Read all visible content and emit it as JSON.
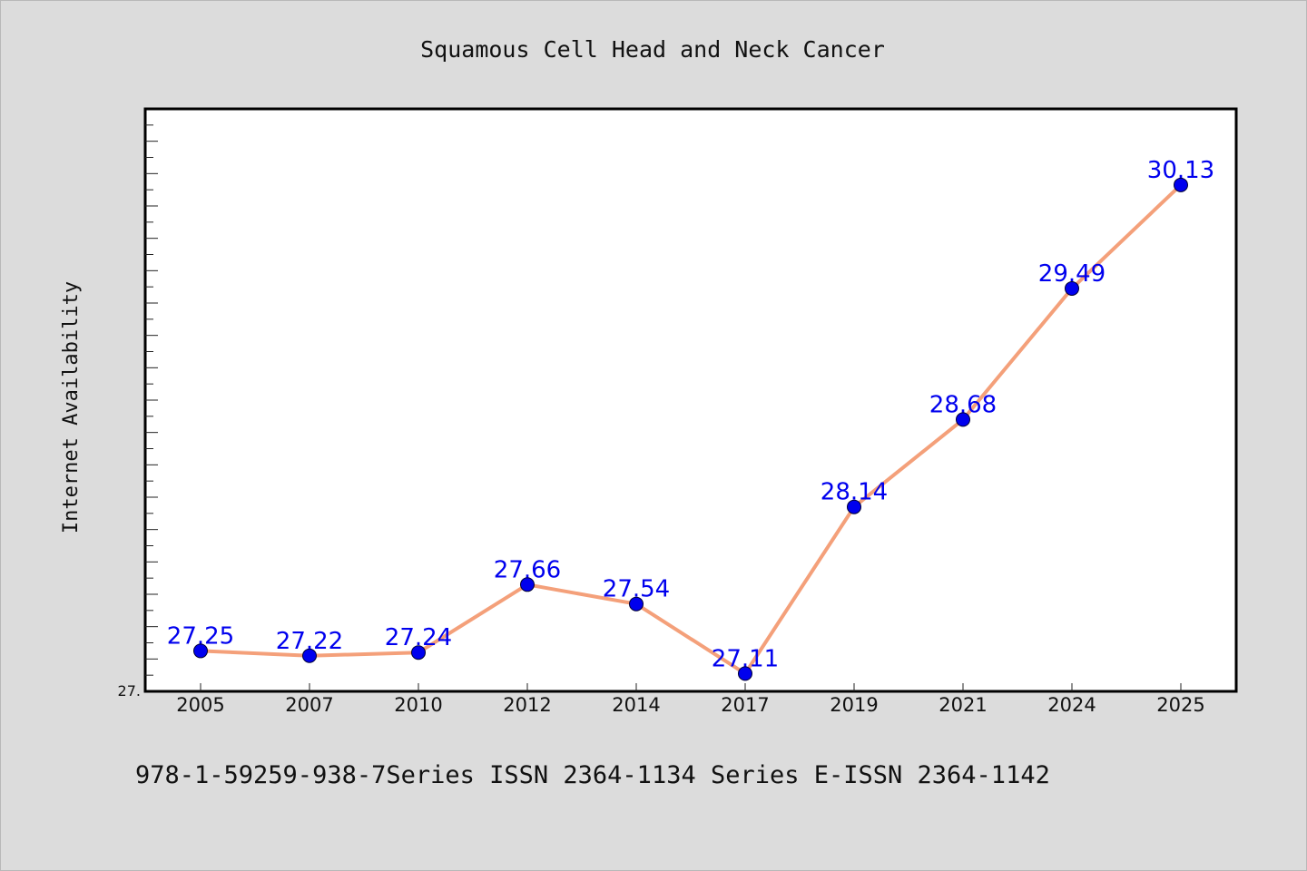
{
  "chart_data": {
    "type": "line",
    "title": "Squamous Cell Head and Neck Cancer",
    "xlabel": "",
    "ylabel": "Internet Availability",
    "categories": [
      "2005",
      "2007",
      "2010",
      "2012",
      "2014",
      "2017",
      "2019",
      "2021",
      "2024",
      "2025"
    ],
    "values": [
      27.25,
      27.22,
      27.24,
      27.66,
      27.54,
      27.11,
      28.14,
      28.68,
      29.49,
      30.13
    ],
    "data_labels": [
      "27.25",
      "27.22",
      "27.24",
      "27.66",
      "27.54",
      "27.11",
      "28.14",
      "28.68",
      "29.49",
      "30.13"
    ],
    "ylim": [
      27.0,
      30.6
    ],
    "y_tick_labels": [
      "27."
    ],
    "line_color": "#f4a07a",
    "marker_color": "#0000ee",
    "label_color": "#0000ee",
    "plot_background": "#ffffff",
    "page_background": "#dcdcdc",
    "grid": false,
    "legend": "none"
  },
  "footer": {
    "text": "978-1-59259-938-7Series ISSN 2364-1134 Series E-ISSN 2364-1142"
  }
}
